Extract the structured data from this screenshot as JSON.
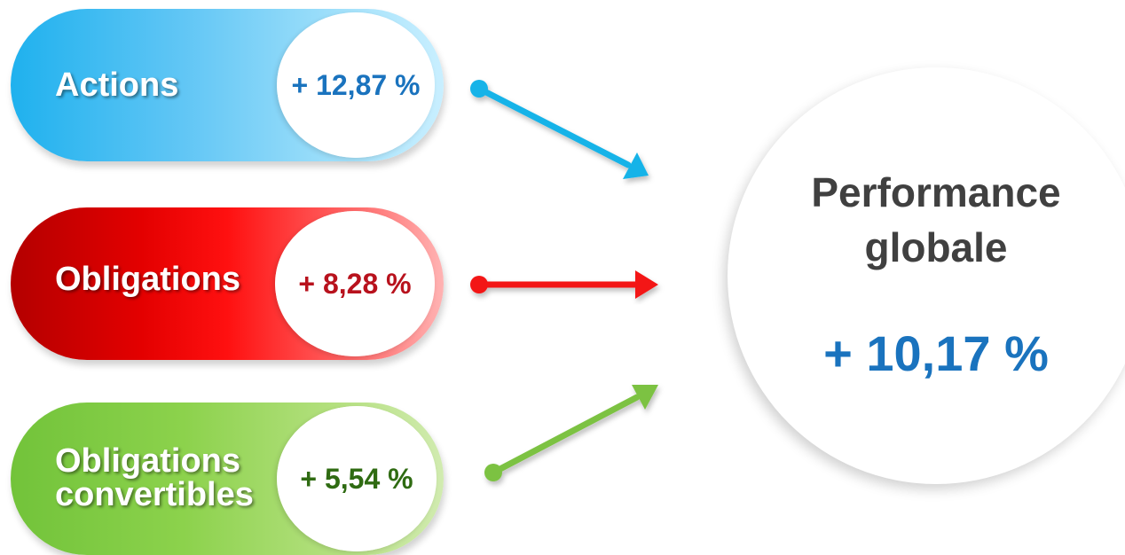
{
  "categories": [
    {
      "id": "actions",
      "label_lines": [
        "Actions"
      ],
      "value": "+ 12,87 %",
      "value_color": "#1a73be",
      "arrow_color": "#14b3e8"
    },
    {
      "id": "obligations",
      "label_lines": [
        "Obligations"
      ],
      "value": "+ 8,28 %",
      "value_color": "#b8121d",
      "arrow_color": "#f31515"
    },
    {
      "id": "convertibles",
      "label_lines": [
        "Obligations",
        "convertibles"
      ],
      "value": "+ 5,54 %",
      "value_color": "#2f6b12",
      "arrow_color": "#7cc242"
    }
  ],
  "summary": {
    "title_lines": [
      "Performance",
      "globale"
    ],
    "value": "+ 10,17 %",
    "value_color": "#1a73be"
  }
}
